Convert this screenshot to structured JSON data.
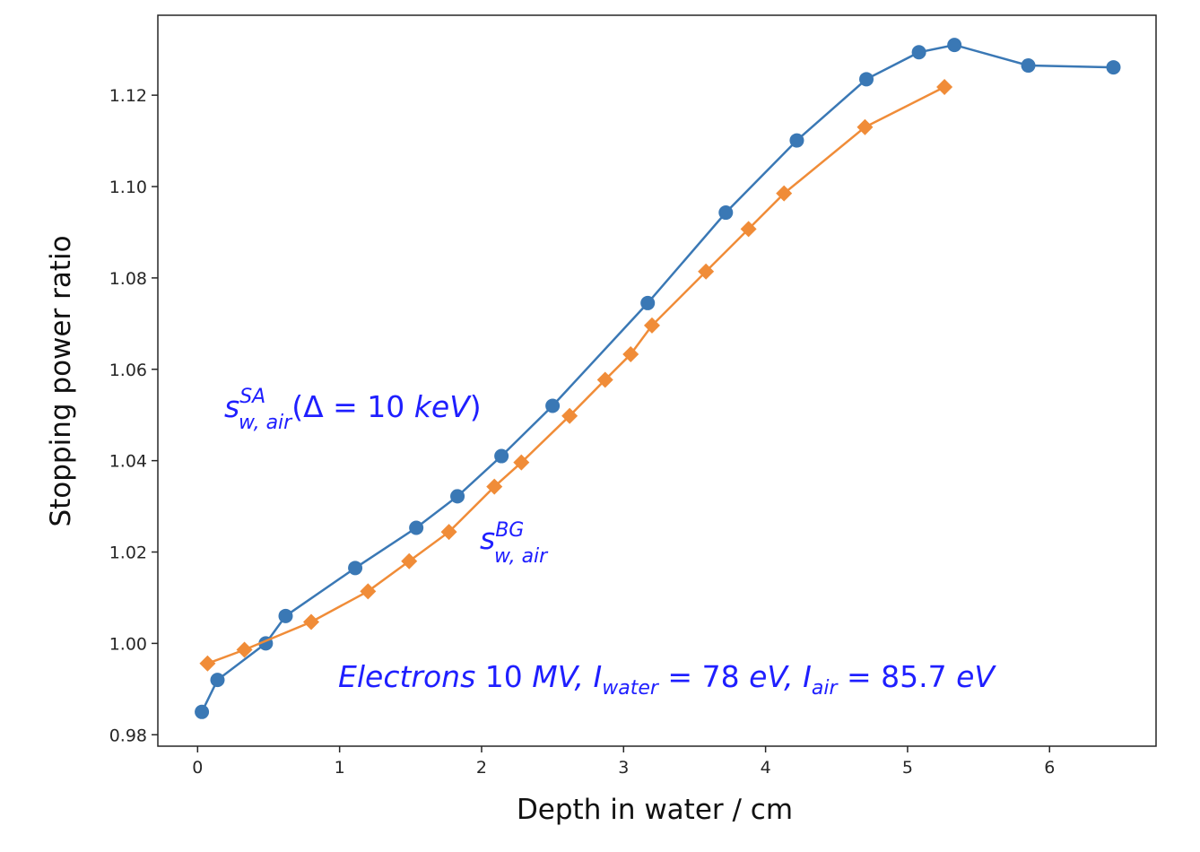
{
  "colors": {
    "series_sa": "#3a78b5",
    "series_bg": "#f08c38",
    "annotation": "#1f1fff",
    "axes": "#262626"
  },
  "chart_data": {
    "type": "line",
    "xlabel": "Depth in water / cm",
    "ylabel": "Stopping power ratio",
    "xlim": [
      -0.28,
      6.75
    ],
    "ylim": [
      0.9775,
      1.1375
    ],
    "xticks": [
      "0",
      "1",
      "2",
      "3",
      "4",
      "5",
      "6"
    ],
    "yticks": [
      "0.98",
      "1.00",
      "1.02",
      "1.04",
      "1.06",
      "1.08",
      "1.10",
      "1.12"
    ],
    "grid": false,
    "series": [
      {
        "key": "sa",
        "marker": "circle",
        "x": [
          0.03,
          0.14,
          0.48,
          0.62,
          1.11,
          1.54,
          1.83,
          2.14,
          2.5,
          3.17,
          3.72,
          4.22,
          4.71,
          5.08,
          5.33,
          5.85,
          6.45
        ],
        "y": [
          0.985,
          0.992,
          1.0,
          1.006,
          1.0165,
          1.0253,
          1.0322,
          1.041,
          1.052,
          1.0745,
          1.0943,
          1.1101,
          1.1235,
          1.1294,
          1.131,
          1.1265,
          1.1261
        ]
      },
      {
        "key": "bg",
        "marker": "diamond",
        "x": [
          0.07,
          0.33,
          0.8,
          1.2,
          1.49,
          1.77,
          2.09,
          2.28,
          2.62,
          2.87,
          3.05,
          3.2,
          3.58,
          3.88,
          4.13,
          4.7,
          5.26
        ],
        "y": [
          0.9956,
          0.9986,
          1.0047,
          1.0114,
          1.018,
          1.0244,
          1.0343,
          1.0396,
          1.0498,
          1.0577,
          1.0633,
          1.0696,
          1.0814,
          1.0907,
          1.0985,
          1.113,
          1.1218
        ]
      }
    ]
  },
  "annotations": {
    "sa_label": {
      "base": "s",
      "sup": "SA",
      "sub": "w, air",
      "paren_open": "(",
      "delta": "Δ",
      "eq": " = 10 ",
      "unit": "keV",
      "paren_close": ")"
    },
    "bg_label": {
      "base": "s",
      "sup": "BG",
      "sub": "w, air"
    },
    "info": {
      "part1": "Electrons",
      "part2": " 10 ",
      "part3": "MV,  ",
      "I1": "I",
      "I1_sub": "water",
      "eq1": " = 78 ",
      "unit1": "eV,  ",
      "I2": "I",
      "I2_sub": "air",
      "eq2": " = 85.7 ",
      "unit2": "eV"
    }
  }
}
